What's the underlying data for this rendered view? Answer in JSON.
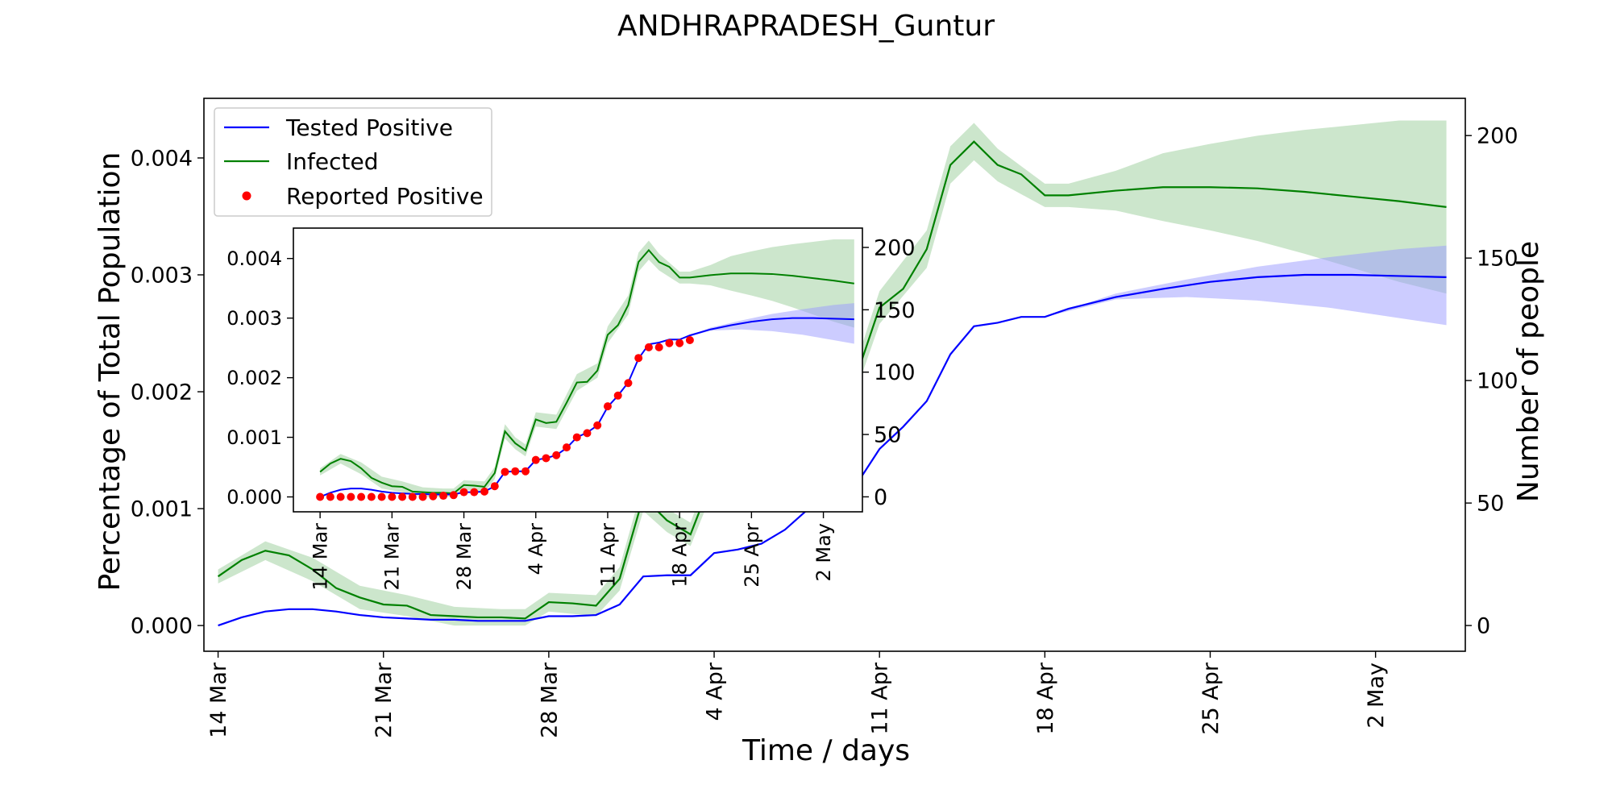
{
  "title": "ANDHRAPRADESH_Guntur",
  "colors": {
    "tested": "#0000ff",
    "tested_band": "#9999ff",
    "infected": "#008000",
    "infected_band": "#80c080",
    "reported": "#ff0000"
  },
  "chart_data": [
    {
      "type": "line",
      "title": "ANDHRAPRADESH_Guntur",
      "xlabel": "Time / days",
      "ylabel": "Percentage of Total Population",
      "y2label": "Number of people",
      "x_ticks": [
        "14 Mar",
        "21 Mar",
        "28 Mar",
        "4 Apr",
        "11 Apr",
        "18 Apr",
        "25 Apr",
        "2 May"
      ],
      "x_tick_days": [
        0,
        7,
        14,
        21,
        28,
        35,
        42,
        49
      ],
      "xlim_days": [
        -0.6,
        52.8
      ],
      "ylim": [
        -0.00022,
        0.00451
      ],
      "y_ticks": [
        "0.000",
        "0.001",
        "0.002",
        "0.003",
        "0.004"
      ],
      "y_tick_values": [
        0,
        0.001,
        0.002,
        0.003,
        0.004
      ],
      "y2lim": [
        -10.5,
        215.2
      ],
      "y2_ticks": [
        "0",
        "50",
        "100",
        "150",
        "200"
      ],
      "y2_tick_values": [
        0,
        50,
        100,
        150,
        200
      ],
      "grid": false,
      "legend": {
        "position": "top-left",
        "entries": [
          {
            "label": "Tested Positive",
            "marker": "line",
            "color": "#0000ff"
          },
          {
            "label": "Infected",
            "marker": "line",
            "color": "#008000"
          },
          {
            "label": "Reported Positive",
            "marker": "dot",
            "color": "#ff0000"
          }
        ]
      },
      "series": [
        {
          "name": "Tested Positive",
          "color": "#0000ff",
          "band_color": "#9999ff",
          "points": [
            [
              0,
              0
            ],
            [
              1,
              7e-05
            ],
            [
              2,
              0.00012
            ],
            [
              3,
              0.00014
            ],
            [
              4,
              0.00014
            ],
            [
              5,
              0.00012
            ],
            [
              6,
              9e-05
            ],
            [
              7,
              7e-05
            ],
            [
              8,
              6e-05
            ],
            [
              9,
              5e-05
            ],
            [
              10,
              5e-05
            ],
            [
              11,
              4e-05
            ],
            [
              12,
              4e-05
            ],
            [
              13,
              4e-05
            ],
            [
              14,
              8e-05
            ],
            [
              15,
              8e-05
            ],
            [
              16,
              9e-05
            ],
            [
              17,
              0.00018
            ],
            [
              18,
              0.00042
            ],
            [
              19,
              0.00043
            ],
            [
              20,
              0.00043
            ],
            [
              21,
              0.00062
            ],
            [
              22,
              0.00065
            ],
            [
              23,
              0.0007
            ],
            [
              24,
              0.00082
            ],
            [
              25,
              0.001
            ],
            [
              26,
              0.00108
            ],
            [
              27,
              0.0012
            ],
            [
              28,
              0.00151
            ],
            [
              29,
              0.0017
            ],
            [
              30,
              0.00192
            ],
            [
              31,
              0.00232
            ],
            [
              32,
              0.00256
            ],
            [
              33,
              0.00259
            ],
            [
              34,
              0.00264
            ],
            [
              35,
              0.00264
            ],
            [
              36,
              0.00271
            ],
            [
              38,
              0.00281
            ],
            [
              40,
              0.00288
            ],
            [
              42,
              0.00294
            ],
            [
              44,
              0.00298
            ],
            [
              46,
              0.003
            ],
            [
              48,
              0.003
            ],
            [
              50,
              0.00299
            ],
            [
              52,
              0.00298
            ]
          ],
          "band": [
            [
              35,
              0.00264,
              0.00264
            ],
            [
              38,
              0.00279,
              0.00284
            ],
            [
              41,
              0.00281,
              0.00296
            ],
            [
              44,
              0.00278,
              0.00307
            ],
            [
              47,
              0.00272,
              0.00315
            ],
            [
              50,
              0.00263,
              0.00322
            ],
            [
              52,
              0.00257,
              0.00325
            ]
          ]
        },
        {
          "name": "Infected",
          "color": "#008000",
          "band_color": "#80c080",
          "points": [
            [
              0,
              0.00042
            ],
            [
              1,
              0.00056
            ],
            [
              2,
              0.00064
            ],
            [
              3,
              0.0006
            ],
            [
              4,
              0.00048
            ],
            [
              5,
              0.00032
            ],
            [
              6,
              0.00024
            ],
            [
              7,
              0.00018
            ],
            [
              8,
              0.00017
            ],
            [
              9,
              9e-05
            ],
            [
              10,
              8e-05
            ],
            [
              11,
              7e-05
            ],
            [
              12,
              7e-05
            ],
            [
              13,
              6e-05
            ],
            [
              14,
              0.0002
            ],
            [
              15,
              0.00019
            ],
            [
              16,
              0.00017
            ],
            [
              17,
              0.0004
            ],
            [
              18,
              0.0011
            ],
            [
              19,
              0.0009
            ],
            [
              20,
              0.00078
            ],
            [
              21,
              0.0013
            ],
            [
              22,
              0.00124
            ],
            [
              23,
              0.00126
            ],
            [
              24,
              0.00158
            ],
            [
              25,
              0.00192
            ],
            [
              26,
              0.00193
            ],
            [
              27,
              0.00212
            ],
            [
              28,
              0.00272
            ],
            [
              29,
              0.00288
            ],
            [
              30,
              0.00322
            ],
            [
              31,
              0.00394
            ],
            [
              32,
              0.00414
            ],
            [
              33,
              0.00394
            ],
            [
              34,
              0.00386
            ],
            [
              35,
              0.00368
            ],
            [
              36,
              0.00368
            ],
            [
              38,
              0.00372
            ],
            [
              40,
              0.00375
            ],
            [
              42,
              0.00375
            ],
            [
              44,
              0.00374
            ],
            [
              46,
              0.00371
            ],
            [
              48,
              0.00367
            ],
            [
              50,
              0.00363
            ],
            [
              52,
              0.00358
            ]
          ],
          "band": [
            [
              0,
              0.00036,
              0.00048
            ],
            [
              2,
              0.00056,
              0.00072
            ],
            [
              4,
              0.00038,
              0.00058
            ],
            [
              6,
              0.00014,
              0.00034
            ],
            [
              8,
              8e-05,
              0.00026
            ],
            [
              10,
              0.0,
              0.00016
            ],
            [
              12,
              -0.0,
              0.00014
            ],
            [
              13,
              -0.0,
              0.00014
            ],
            [
              14,
              0.00012,
              0.00028
            ],
            [
              16,
              8e-05,
              0.00026
            ],
            [
              17,
              0.0003,
              0.0005
            ],
            [
              18,
              0.00098,
              0.00122
            ],
            [
              19,
              0.0008,
              0.001
            ],
            [
              20,
              0.00068,
              0.00088
            ],
            [
              21,
              0.00118,
              0.00142
            ],
            [
              23,
              0.00114,
              0.00138
            ],
            [
              25,
              0.00178,
              0.00206
            ],
            [
              27,
              0.002,
              0.00224
            ],
            [
              28,
              0.00258,
              0.00286
            ],
            [
              30,
              0.00306,
              0.00338
            ],
            [
              31,
              0.00378,
              0.0041
            ],
            [
              32,
              0.00398,
              0.0043
            ],
            [
              33,
              0.0038,
              0.00408
            ],
            [
              35,
              0.00358,
              0.00378
            ],
            [
              36,
              0.00358,
              0.00378
            ],
            [
              38,
              0.00355,
              0.00389
            ],
            [
              40,
              0.00346,
              0.00404
            ],
            [
              42,
              0.00338,
              0.00412
            ],
            [
              44,
              0.00329,
              0.00419
            ],
            [
              46,
              0.00318,
              0.00424
            ],
            [
              48,
              0.00306,
              0.00428
            ],
            [
              50,
              0.00294,
              0.00432
            ],
            [
              52,
              0.00284,
              0.00432
            ]
          ]
        }
      ]
    },
    {
      "type": "line",
      "title": "inset",
      "x_ticks": [
        "14 Mar",
        "21 Mar",
        "28 Mar",
        "4 Apr",
        "11 Apr",
        "18 Apr",
        "25 Apr",
        "2 May"
      ],
      "x_tick_days": [
        0,
        7,
        14,
        21,
        28,
        35,
        42,
        49
      ],
      "xlim_days": [
        -2.6,
        52.8
      ],
      "ylim": [
        -0.00025,
        0.00451
      ],
      "y_ticks": [
        "0.000",
        "0.001",
        "0.002",
        "0.003",
        "0.004"
      ],
      "y_tick_values": [
        0,
        0.001,
        0.002,
        0.003,
        0.004
      ],
      "y2lim": [
        -12,
        215.5
      ],
      "y2_ticks": [
        "0",
        "50",
        "100",
        "150",
        "200"
      ],
      "y2_tick_values": [
        0,
        50,
        100,
        150,
        200
      ],
      "series_ref": [
        "Tested Positive",
        "Infected"
      ],
      "reported_positive": {
        "name": "Reported Positive",
        "color": "#ff0000",
        "points": [
          [
            0,
            0
          ],
          [
            1,
            0
          ],
          [
            2,
            0
          ],
          [
            3,
            0
          ],
          [
            4,
            0
          ],
          [
            5,
            0
          ],
          [
            6,
            0
          ],
          [
            7,
            0
          ],
          [
            8,
            0
          ],
          [
            9,
            0
          ],
          [
            10,
            0
          ],
          [
            11,
            1e-05
          ],
          [
            12,
            2e-05
          ],
          [
            13,
            3e-05
          ],
          [
            14,
            8e-05
          ],
          [
            15,
            8e-05
          ],
          [
            16,
            9e-05
          ],
          [
            17,
            0.00018
          ],
          [
            18,
            0.00042
          ],
          [
            19,
            0.00043
          ],
          [
            20,
            0.00043
          ],
          [
            21,
            0.00062
          ],
          [
            22,
            0.00065
          ],
          [
            23,
            0.0007
          ],
          [
            24,
            0.00083
          ],
          [
            25,
            0.001
          ],
          [
            26,
            0.00107
          ],
          [
            27,
            0.0012
          ],
          [
            28,
            0.00152
          ],
          [
            29,
            0.0017
          ],
          [
            30,
            0.00191
          ],
          [
            31,
            0.00233
          ],
          [
            32,
            0.00251
          ],
          [
            33,
            0.00251
          ],
          [
            34,
            0.00258
          ],
          [
            35,
            0.00258
          ],
          [
            36,
            0.00263
          ]
        ]
      }
    }
  ]
}
